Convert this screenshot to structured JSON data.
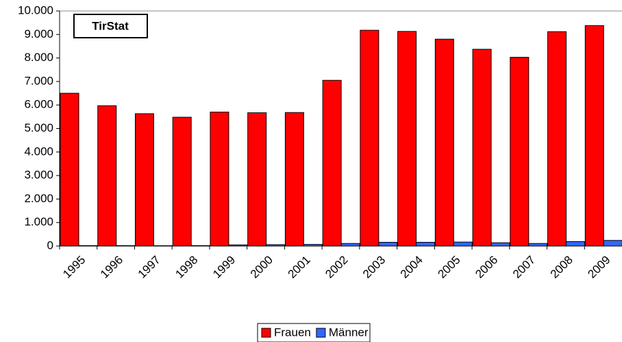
{
  "chart_data": {
    "type": "bar",
    "annotation": "TirStat",
    "categories": [
      "1995",
      "1996",
      "1997",
      "1998",
      "1999",
      "2000",
      "2001",
      "2002",
      "2003",
      "2004",
      "2005",
      "2006",
      "2007",
      "2008",
      "2009"
    ],
    "series": [
      {
        "name": "Frauen",
        "color": "#ff0000",
        "values": [
          6500,
          5970,
          5630,
          5480,
          5700,
          5670,
          5680,
          7050,
          9180,
          9130,
          8800,
          8370,
          8030,
          9120,
          9380
        ]
      },
      {
        "name": "Männer",
        "color": "#3366ff",
        "values": [
          20,
          20,
          15,
          20,
          50,
          60,
          70,
          110,
          160,
          160,
          170,
          140,
          110,
          190,
          240
        ]
      }
    ],
    "ylim": [
      0,
      10000
    ],
    "yticks": [
      0,
      {
        "value": 1000,
        "label": "1.000"
      },
      {
        "value": 2000,
        "label": "2.000"
      },
      {
        "value": 3000,
        "label": "3.000"
      },
      {
        "value": 4000,
        "label": "4.000"
      },
      {
        "value": 5000,
        "label": "5.000"
      },
      {
        "value": 6000,
        "label": "6.000"
      },
      {
        "value": 7000,
        "label": "7.000"
      },
      {
        "value": 8000,
        "label": "8.000"
      },
      {
        "value": 9000,
        "label": "9.000"
      },
      {
        "value": 10000,
        "label": "10.000"
      }
    ],
    "grid": false,
    "legend": "bottom"
  }
}
